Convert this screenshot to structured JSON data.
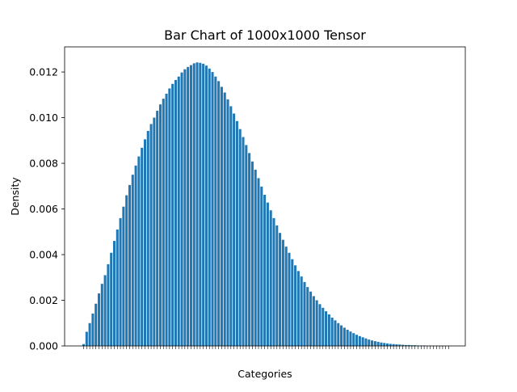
{
  "chart_data": {
    "type": "bar",
    "title": "Bar Chart of 1000x1000 Tensor",
    "xlabel": "Categories",
    "ylabel": "Density",
    "ylim": [
      0,
      0.0131
    ],
    "yticks": [
      "0.000",
      "0.002",
      "0.004",
      "0.006",
      "0.008",
      "0.010",
      "0.012"
    ],
    "yticks_values": [
      0,
      0.002,
      0.004,
      0.006,
      0.008,
      0.01,
      0.012
    ],
    "bar_count": 120,
    "grid": false,
    "legend": "none",
    "bar_color": "#1f77b4",
    "values": [
      8e-05,
      0.00062,
      0.001,
      0.00142,
      0.00185,
      0.0023,
      0.00272,
      0.0031,
      0.00358,
      0.00408,
      0.0046,
      0.0051,
      0.0056,
      0.0061,
      0.0066,
      0.00705,
      0.0075,
      0.0079,
      0.0083,
      0.00868,
      0.00905,
      0.00942,
      0.00972,
      0.01,
      0.0103,
      0.01058,
      0.01083,
      0.01105,
      0.01128,
      0.01148,
      0.01165,
      0.0118,
      0.01198,
      0.01212,
      0.01222,
      0.0123,
      0.01238,
      0.01242,
      0.0124,
      0.01236,
      0.01228,
      0.01215,
      0.012,
      0.0118,
      0.0116,
      0.01135,
      0.0111,
      0.0108,
      0.0105,
      0.01018,
      0.00985,
      0.0095,
      0.00915,
      0.0088,
      0.00845,
      0.00808,
      0.00772,
      0.00735,
      0.00698,
      0.00662,
      0.00628,
      0.00594,
      0.0056,
      0.00528,
      0.00495,
      0.00465,
      0.00435,
      0.00408,
      0.0038,
      0.00353,
      0.00328,
      0.00304,
      0.0028,
      0.00258,
      0.00238,
      0.00218,
      0.002,
      0.00183,
      0.00167,
      0.00152,
      0.00138,
      0.00124,
      0.00112,
      0.001,
      0.0009,
      0.0008,
      0.00071,
      0.00063,
      0.00056,
      0.00049,
      0.00043,
      0.00038,
      0.00033,
      0.00028,
      0.00024,
      0.00021,
      0.00018,
      0.00015,
      0.00013,
      0.00011,
      9e-05,
      8e-05,
      7e-05,
      6e-05,
      5e-05,
      4e-05,
      4e-05,
      3e-05,
      3e-05,
      2e-05,
      2e-05,
      2e-05,
      1e-05,
      1e-05,
      1e-05,
      1e-05,
      1e-05,
      1e-05,
      0.0,
      0.0
    ]
  }
}
